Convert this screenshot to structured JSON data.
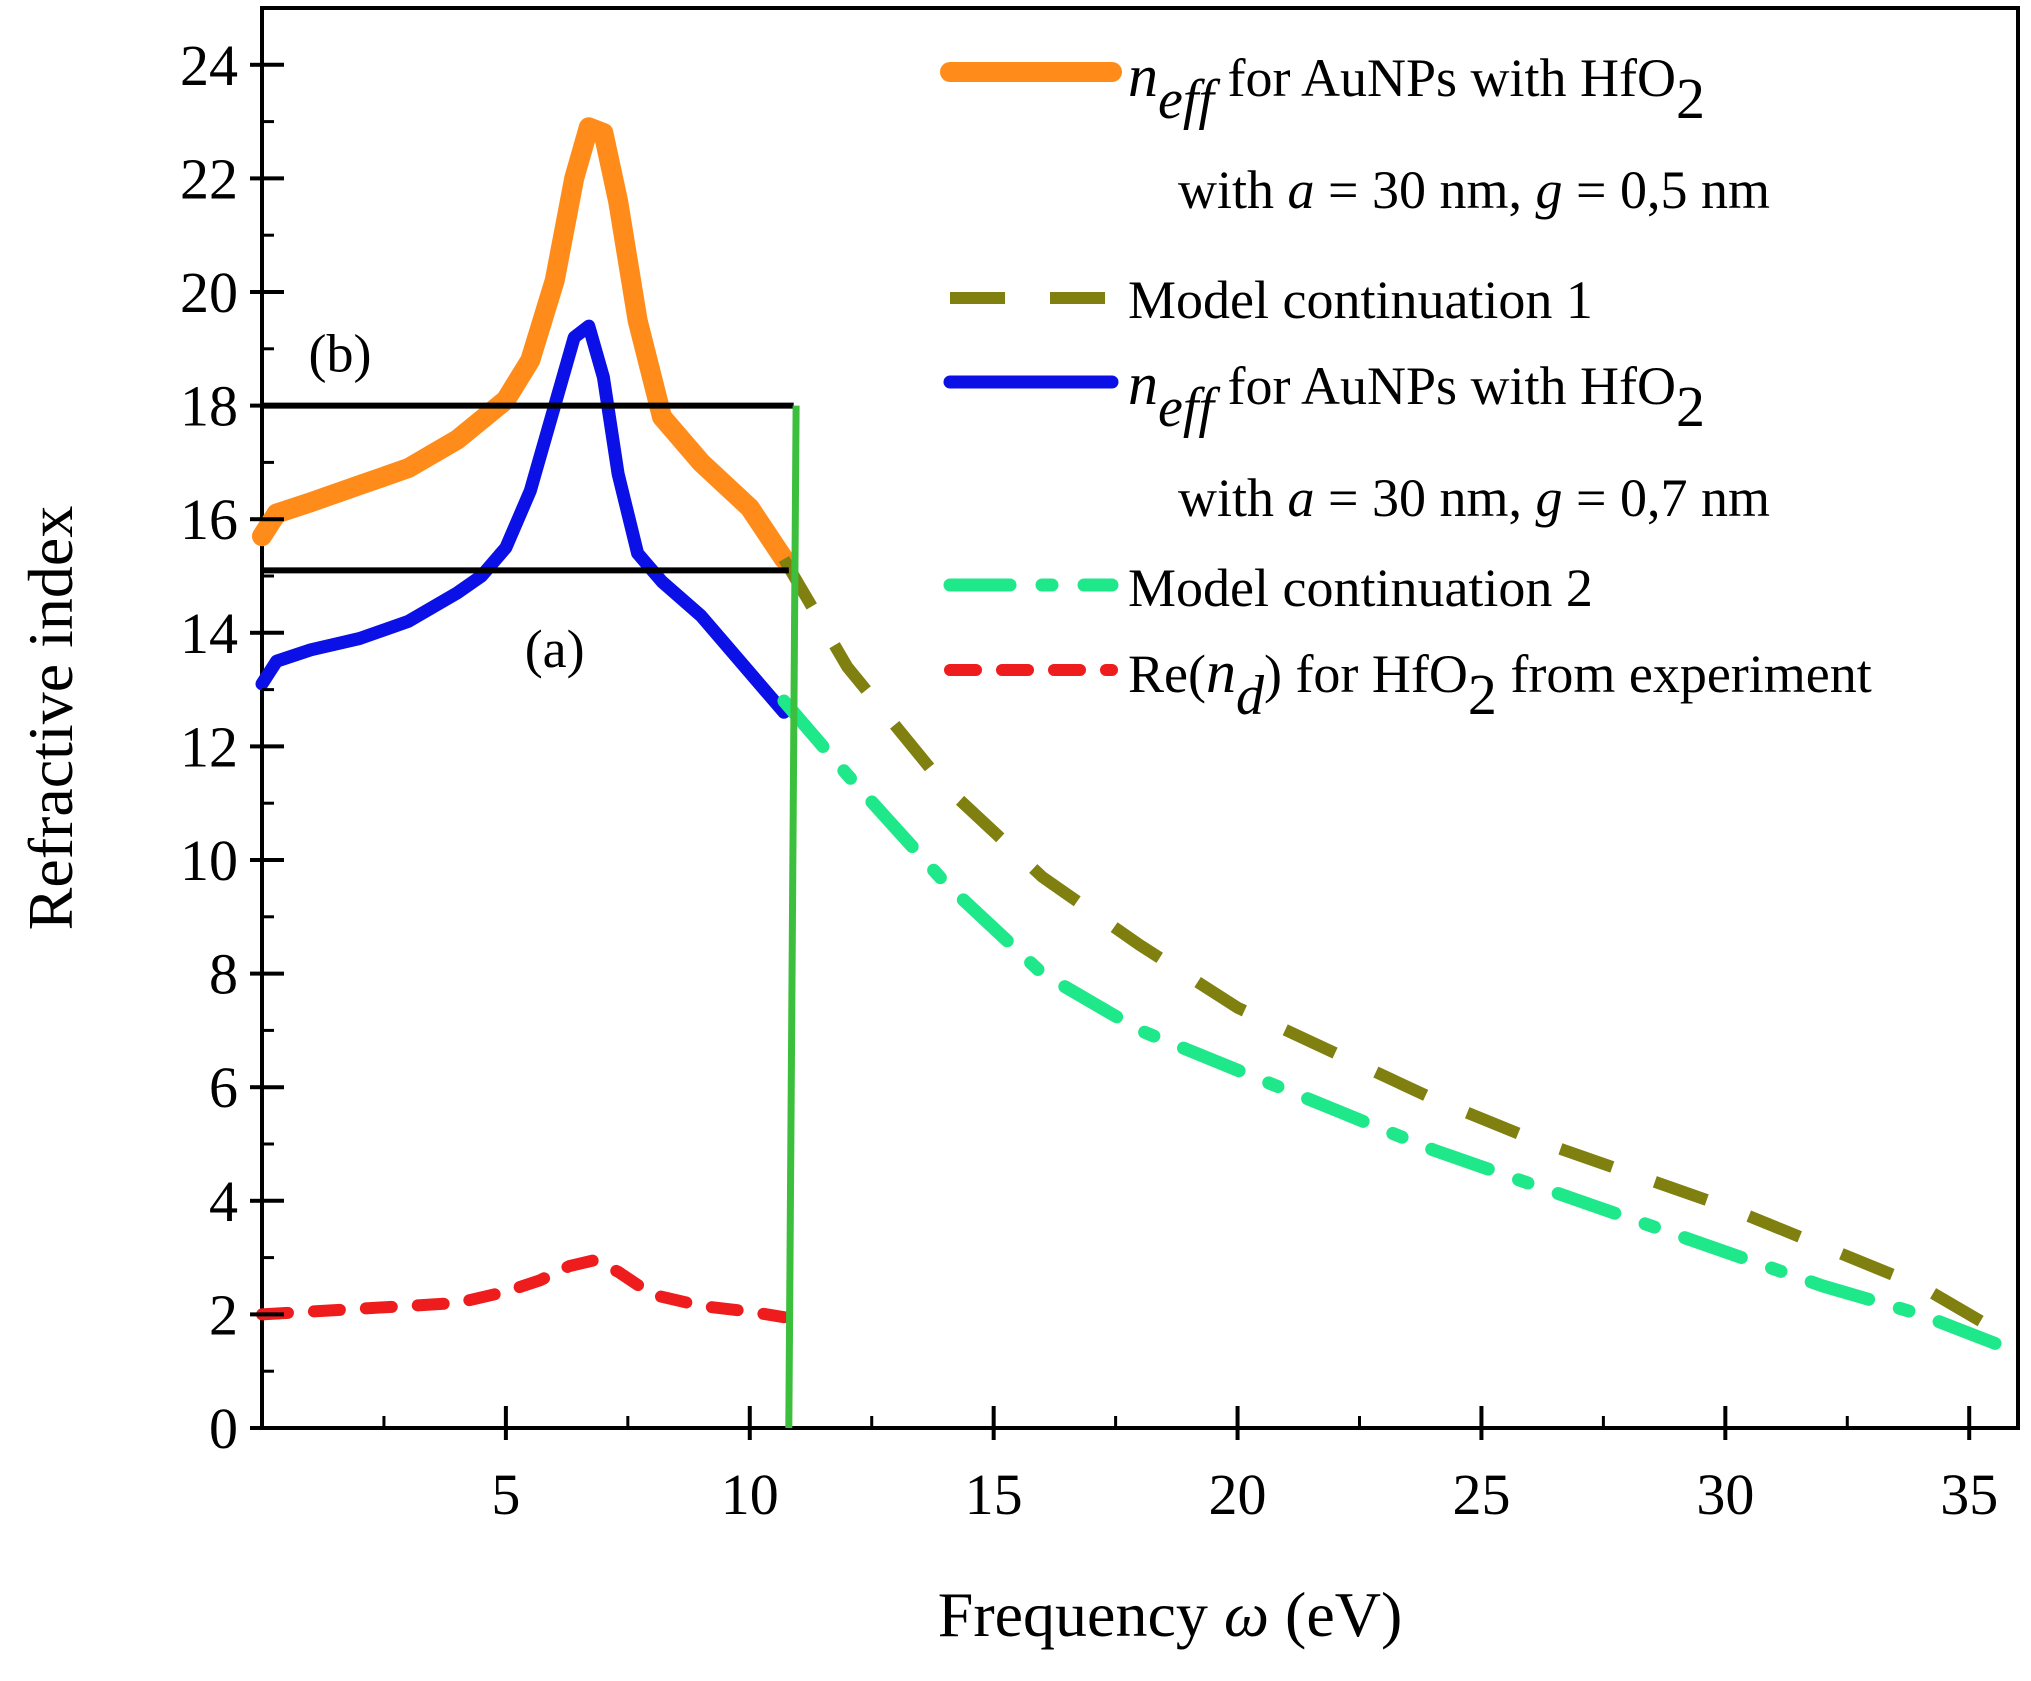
{
  "chart_data": {
    "type": "line",
    "xlabel": "Frequency ω (eV)",
    "xlabel_parts": {
      "main": "Frequency ",
      "symbol": "ω",
      "unit": "(eV)"
    },
    "ylabel": "Refractive index",
    "xlim": [
      0,
      36
    ],
    "ylim": [
      0,
      25
    ],
    "xticks": [
      5,
      10,
      15,
      20,
      25,
      30,
      35
    ],
    "yticks": [
      0,
      2,
      4,
      6,
      8,
      10,
      12,
      14,
      16,
      18,
      20,
      22,
      24
    ],
    "legend_position": "top-right",
    "annotations": [
      {
        "text": "(b)",
        "x": 1.6,
        "y": 18.6
      },
      {
        "text": "(a)",
        "x": 6.0,
        "y": 13.4
      }
    ],
    "reference_lines": [
      {
        "name": "line-b",
        "color": "#000000",
        "x": [
          0,
          10.9
        ],
        "y": [
          18.0,
          18.0
        ]
      },
      {
        "name": "line-a",
        "color": "#000000",
        "x": [
          0,
          10.8
        ],
        "y": [
          15.1,
          15.1
        ]
      },
      {
        "name": "cutoff",
        "color": "#3cbf3c",
        "x": [
          10.8,
          10.95
        ],
        "y": [
          0,
          18.0
        ]
      }
    ],
    "series": [
      {
        "name": "n_eff for AuNPs with HfO2 with a = 30 nm, g = 0,5 nm",
        "color": "#ff8c1a",
        "style": "solid-thick",
        "x": [
          0,
          0.3,
          1,
          2,
          3,
          4,
          5,
          5.5,
          6,
          6.4,
          6.7,
          7.0,
          7.3,
          7.7,
          8.2,
          9,
          10,
          10.7
        ],
        "y": [
          15.7,
          16.1,
          16.3,
          16.6,
          16.9,
          17.4,
          18.1,
          18.8,
          20.2,
          22.0,
          22.9,
          22.8,
          21.6,
          19.5,
          17.8,
          17.0,
          16.2,
          15.3
        ]
      },
      {
        "name": "Model continuation 1",
        "color": "#808010",
        "style": "dashed",
        "x": [
          10.7,
          12,
          14,
          16,
          18,
          20,
          22,
          24,
          26,
          28,
          30,
          32,
          34,
          35.8
        ],
        "y": [
          15.3,
          13.4,
          11.3,
          9.7,
          8.5,
          7.4,
          6.6,
          5.8,
          5.1,
          4.5,
          3.9,
          3.2,
          2.5,
          1.6
        ]
      },
      {
        "name": "n_eff for AuNPs with HfO2 with a = 30 nm, g = 0,7 nm",
        "color": "#0a10e6",
        "style": "solid",
        "x": [
          0,
          0.3,
          1,
          2,
          3,
          4,
          4.5,
          5,
          5.5,
          6,
          6.4,
          6.7,
          7.0,
          7.3,
          7.7,
          8.2,
          9,
          10,
          10.7
        ],
        "y": [
          13.1,
          13.5,
          13.7,
          13.9,
          14.2,
          14.7,
          15.0,
          15.5,
          16.5,
          18.0,
          19.2,
          19.4,
          18.5,
          16.8,
          15.4,
          14.9,
          14.3,
          13.3,
          12.6
        ]
      },
      {
        "name": "Model continuation 2",
        "color": "#1fe88a",
        "style": "dash-dot",
        "x": [
          10.7,
          12,
          14,
          16,
          18,
          20,
          22,
          24,
          26,
          28,
          30,
          32,
          34,
          35.8
        ],
        "y": [
          12.8,
          11.5,
          9.6,
          8.0,
          7.0,
          6.3,
          5.6,
          4.9,
          4.3,
          3.7,
          3.1,
          2.5,
          2.0,
          1.4
        ]
      },
      {
        "name": "Re(n_d) for HfO2 from experiment",
        "color": "#ee1c1c",
        "style": "dotted",
        "x": [
          0,
          1,
          2,
          3,
          4,
          5,
          5.7,
          6.3,
          6.8,
          7.3,
          8,
          9,
          10,
          10.7
        ],
        "y": [
          2.0,
          2.05,
          2.1,
          2.15,
          2.2,
          2.4,
          2.6,
          2.85,
          2.95,
          2.75,
          2.35,
          2.15,
          2.05,
          1.95
        ]
      }
    ],
    "legend": [
      {
        "color": "#ff8c1a",
        "style": "solid-thick",
        "line1_pre": "",
        "italic": "n",
        "sub": "eff",
        "line1_post": " for AuNPs with HfO",
        "post_sub": "2",
        "line2": "with a = 30 nm, g = 0,5 nm"
      },
      {
        "color": "#808010",
        "style": "dashed",
        "text": "Model continuation 1"
      },
      {
        "color": "#0a10e6",
        "style": "solid",
        "line1_pre": "",
        "italic": "n",
        "sub": "eff",
        "line1_post": " for AuNPs with HfO",
        "post_sub": "2",
        "line2": "with a = 30 nm, g = 0,7 nm"
      },
      {
        "color": "#1fe88a",
        "style": "dash-dot",
        "text": "Model continuation 2"
      },
      {
        "color": "#ee1c1c",
        "style": "dotted",
        "line1_pre": "Re(",
        "italic": "n",
        "sub": "d",
        "line1_post": ") for HfO",
        "post_sub": "2",
        "line2_post": " from experiment"
      }
    ]
  }
}
